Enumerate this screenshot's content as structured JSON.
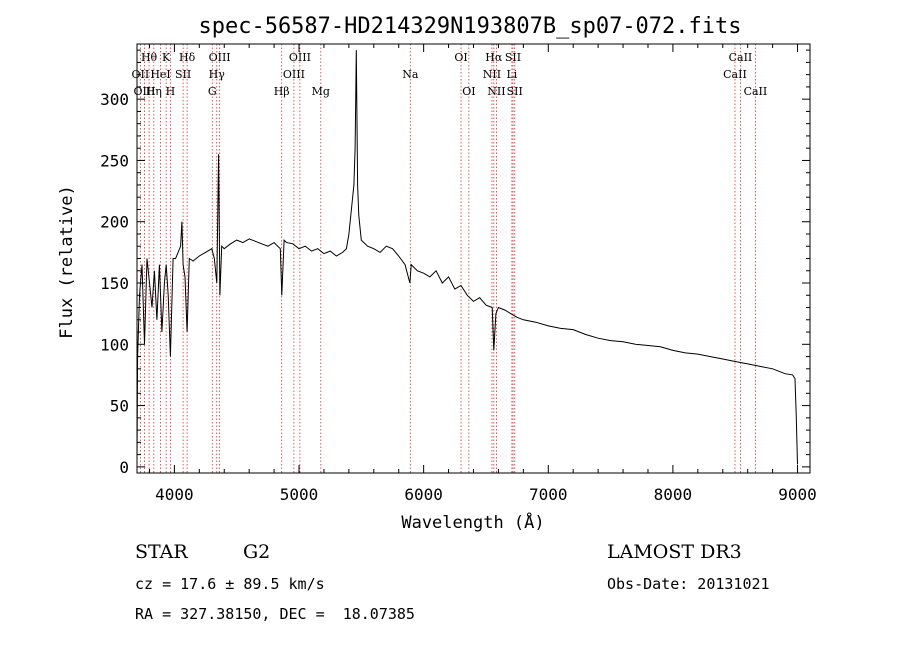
{
  "chart_data": {
    "type": "line",
    "title": "spec-56587-HD214329N193807B_sp07-072.fits",
    "xlabel": "Wavelength (Å)",
    "ylabel": "Flux (relative)",
    "xlim": [
      3700,
      9100
    ],
    "ylim": [
      -5,
      345
    ],
    "xticks": [
      4000,
      5000,
      6000,
      7000,
      8000,
      9000
    ],
    "yticks": [
      0,
      50,
      100,
      150,
      200,
      250,
      300
    ],
    "series": [
      {
        "name": "flux",
        "x": [
          3700,
          3705,
          3720,
          3740,
          3760,
          3780,
          3800,
          3820,
          3840,
          3860,
          3880,
          3900,
          3920,
          3934,
          3950,
          3968,
          3990,
          4010,
          4030,
          4050,
          4060,
          4070,
          4085,
          4102,
          4120,
          4150,
          4200,
          4250,
          4300,
          4320,
          4340,
          4355,
          4365,
          4380,
          4400,
          4450,
          4500,
          4550,
          4600,
          4650,
          4700,
          4750,
          4800,
          4850,
          4862,
          4880,
          4900,
          4950,
          5000,
          5050,
          5100,
          5150,
          5200,
          5250,
          5300,
          5350,
          5380,
          5400,
          5420,
          5440,
          5450,
          5460,
          5470,
          5480,
          5500,
          5550,
          5600,
          5650,
          5700,
          5750,
          5800,
          5850,
          5890,
          5900,
          5950,
          6000,
          6050,
          6100,
          6150,
          6200,
          6250,
          6300,
          6350,
          6400,
          6450,
          6500,
          6550,
          6563,
          6580,
          6600,
          6650,
          6700,
          6750,
          6800,
          6900,
          7000,
          7100,
          7200,
          7300,
          7400,
          7500,
          7600,
          7700,
          7800,
          7900,
          8000,
          8100,
          8200,
          8300,
          8400,
          8500,
          8600,
          8700,
          8800,
          8900,
          8960,
          8980,
          8990,
          9000
        ],
        "values": [
          5,
          90,
          140,
          165,
          100,
          170,
          150,
          130,
          160,
          120,
          165,
          110,
          150,
          165,
          140,
          90,
          170,
          170,
          175,
          180,
          200,
          165,
          155,
          110,
          170,
          168,
          172,
          175,
          178,
          170,
          150,
          255,
          140,
          180,
          178,
          182,
          185,
          183,
          186,
          184,
          182,
          180,
          183,
          178,
          140,
          185,
          183,
          182,
          178,
          180,
          176,
          178,
          174,
          176,
          172,
          175,
          178,
          190,
          210,
          230,
          260,
          340,
          230,
          205,
          185,
          180,
          178,
          175,
          180,
          178,
          172,
          165,
          150,
          165,
          160,
          158,
          155,
          160,
          150,
          155,
          145,
          148,
          140,
          135,
          138,
          132,
          130,
          95,
          125,
          130,
          128,
          125,
          122,
          120,
          118,
          115,
          113,
          112,
          108,
          105,
          103,
          102,
          100,
          99,
          98,
          95,
          93,
          92,
          90,
          88,
          86,
          84,
          82,
          80,
          76,
          75,
          72,
          40,
          2
        ]
      }
    ],
    "line_labels": [
      {
        "label": "Hθ",
        "row": 1,
        "wavelength": 3797
      },
      {
        "label": "OII",
        "row": 2,
        "wavelength": 3727
      },
      {
        "label": "OIII",
        "row": 3,
        "wavelength": 3760
      },
      {
        "label": "Hη",
        "row": 3,
        "wavelength": 3835
      },
      {
        "label": "K",
        "row": 1,
        "wavelength": 3934
      },
      {
        "label": "HeI",
        "row": 2,
        "wavelength": 3889
      },
      {
        "label": "H",
        "row": 3,
        "wavelength": 3968
      },
      {
        "label": "SII",
        "row": 2,
        "wavelength": 4070
      },
      {
        "label": "Hδ",
        "row": 1,
        "wavelength": 4102
      },
      {
        "label": "OIII",
        "row": 1,
        "wavelength": 4363
      },
      {
        "label": "Hγ",
        "row": 2,
        "wavelength": 4340
      },
      {
        "label": "G",
        "row": 3,
        "wavelength": 4304
      },
      {
        "label": "Hβ",
        "row": 3,
        "wavelength": 4861
      },
      {
        "label": "OIII",
        "row": 1,
        "wavelength": 5007
      },
      {
        "label": "OIII",
        "row": 2,
        "wavelength": 4959
      },
      {
        "label": "Mg",
        "row": 3,
        "wavelength": 5175
      },
      {
        "label": "Na",
        "row": 2,
        "wavelength": 5893
      },
      {
        "label": "OI",
        "row": 1,
        "wavelength": 6300
      },
      {
        "label": "OI",
        "row": 3,
        "wavelength": 6363
      },
      {
        "label": "Hα",
        "row": 1,
        "wavelength": 6563
      },
      {
        "label": "NII",
        "row": 2,
        "wavelength": 6548
      },
      {
        "label": "NII",
        "row": 3,
        "wavelength": 6584
      },
      {
        "label": "SII",
        "row": 1,
        "wavelength": 6717
      },
      {
        "label": "Li",
        "row": 2,
        "wavelength": 6708
      },
      {
        "label": "SII",
        "row": 3,
        "wavelength": 6731
      },
      {
        "label": "CaII",
        "row": 1,
        "wavelength": 8542
      },
      {
        "label": "CaII",
        "row": 2,
        "wavelength": 8498
      },
      {
        "label": "CaII",
        "row": 3,
        "wavelength": 8662
      }
    ],
    "marker_lines": [
      3727,
      3760,
      3797,
      3835,
      3889,
      3934,
      3968,
      4070,
      4102,
      4304,
      4340,
      4363,
      4861,
      4959,
      5007,
      5175,
      5893,
      6300,
      6363,
      6548,
      6563,
      6584,
      6708,
      6717,
      6731,
      8498,
      8542,
      8662
    ]
  },
  "info": {
    "object_class": "STAR",
    "subclass": "G2",
    "survey": "LAMOST DR3",
    "cz": "cz = 17.6 ± 89.5 km/s",
    "obs_date": "Obs-Date: 20131021",
    "coords": "RA = 327.38150, DEC =  18.07385"
  },
  "colors": {
    "marker": "#cc3333",
    "line": "#000000"
  }
}
